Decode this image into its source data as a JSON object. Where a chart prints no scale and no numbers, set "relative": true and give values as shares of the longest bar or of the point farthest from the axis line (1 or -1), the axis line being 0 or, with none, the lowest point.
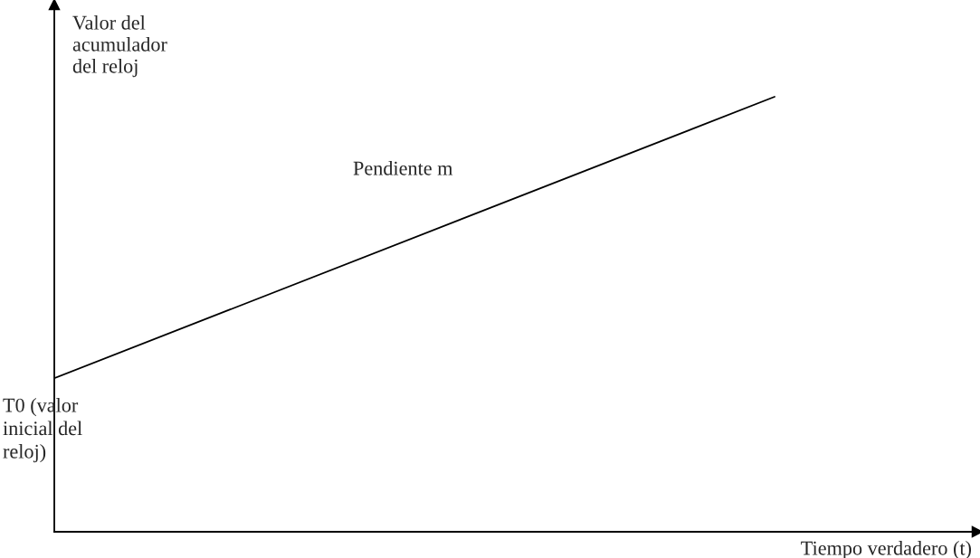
{
  "chart_data": {
    "type": "line",
    "relative": true,
    "categories": [
      null,
      null
    ],
    "values": [
      0.353,
      1
    ],
    "color": "#000000",
    "ylabel": "Valor del\nacumulador\ndel reloj",
    "xlabel": "Tiempo verdadero (t)",
    "legend": false,
    "annotations": [
      "T0 (valor\ninicial del\nreloj)",
      "Pendiente m"
    ]
  }
}
